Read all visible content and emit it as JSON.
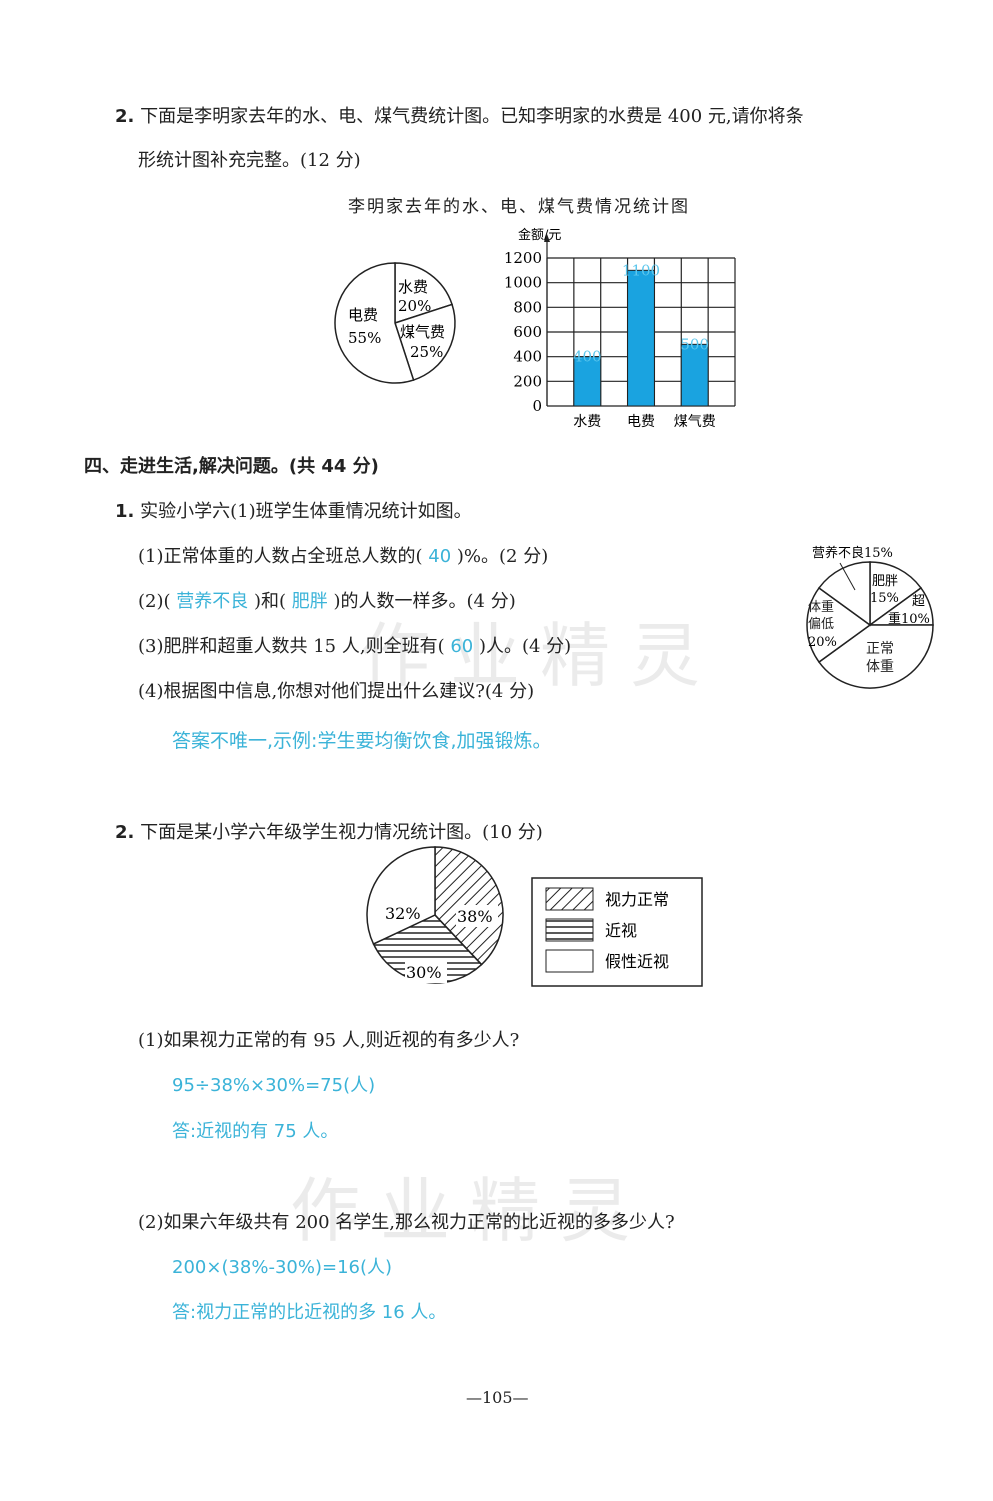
{
  "q2": {
    "num": "2.",
    "line1": "下面是李明家去年的水、电、煤气费统计图。已知李明家的水费是 400 元,请你将条",
    "line2": "形统计图补充完整。(12 分)"
  },
  "chart_data": [
    {
      "type": "pie",
      "title": "李明家去年的水、电、煤气费情况统计图",
      "slices": [
        {
          "label": "水费",
          "value": 20,
          "text": "20%"
        },
        {
          "label": "煤气费",
          "value": 25,
          "text": "25%"
        },
        {
          "label": "电费",
          "value": 55,
          "text": "55%"
        }
      ]
    },
    {
      "type": "bar",
      "ylabel": "金额/元",
      "categories": [
        "水费",
        "电费",
        "煤气费"
      ],
      "values": [
        400,
        1100,
        500
      ],
      "data_labels": [
        "400",
        "1100",
        "500"
      ],
      "ylim": [
        0,
        1200
      ],
      "yticks": [
        "0",
        "200",
        "400",
        "600",
        "800",
        "1000",
        "1200"
      ],
      "grid": true,
      "bar_color": "#1aa3e0"
    },
    {
      "type": "pie",
      "slices": [
        {
          "label": "肥胖",
          "value": 15,
          "text": "15%"
        },
        {
          "label": "超重",
          "value": 10,
          "text": "10%"
        },
        {
          "label": "正常体重",
          "value": 40,
          "text": ""
        },
        {
          "label": "体重偏低",
          "value": 20,
          "text": "20%"
        },
        {
          "label": "营养不良",
          "value": 15,
          "text": "营养不良15%"
        }
      ]
    },
    {
      "type": "pie",
      "slices": [
        {
          "label": "视力正常",
          "value": 38,
          "text": "38%",
          "pattern": "diagonal"
        },
        {
          "label": "近视",
          "value": 30,
          "text": "30%",
          "pattern": "horizontal"
        },
        {
          "label": "假性近视",
          "value": 32,
          "text": "32%",
          "pattern": "none"
        }
      ],
      "legend": [
        "视力正常",
        "近视",
        "假性近视"
      ],
      "legend_placement": "right"
    }
  ],
  "sec4": {
    "title": "四、走进生活,解决问题。(共 44 分)",
    "q1": {
      "num": "1.",
      "text": "实验小学六(1)班学生体重情况统计如图。",
      "s1a": "(1)正常体重的人数占全班总人数的(",
      "s1ans": "40",
      "s1b": ")%。(2 分)",
      "s2a": "(2)(",
      "s2ans1": "营养不良",
      "s2b": ")和(",
      "s2ans2": "肥胖",
      "s2c": ")的人数一样多。(4 分)",
      "s3a": "(3)肥胖和超重人数共 15 人,则全班有(",
      "s3ans": "60",
      "s3b": ")人。(4 分)",
      "s4": "(4)根据图中信息,你想对他们提出什么建议?(4 分)",
      "s4ans": "答案不唯一,示例:学生要均衡饮食,加强锻炼。"
    },
    "q2": {
      "num": "2.",
      "text": "下面是某小学六年级学生视力情况统计图。(10 分)",
      "s1": "(1)如果视力正常的有 95 人,则近视的有多少人?",
      "s1calc": "95÷38%×30%=75(人)",
      "s1ans": "答:近视的有 75 人。",
      "s2": "(2)如果六年级共有 200 名学生,那么视力正常的比近视的多多少人?",
      "s2calc": "200×(38%-30%)=16(人)",
      "s2ans": "答:视力正常的比近视的多 16 人。"
    }
  },
  "watermark": "作业精灵",
  "page_number": "—105—"
}
